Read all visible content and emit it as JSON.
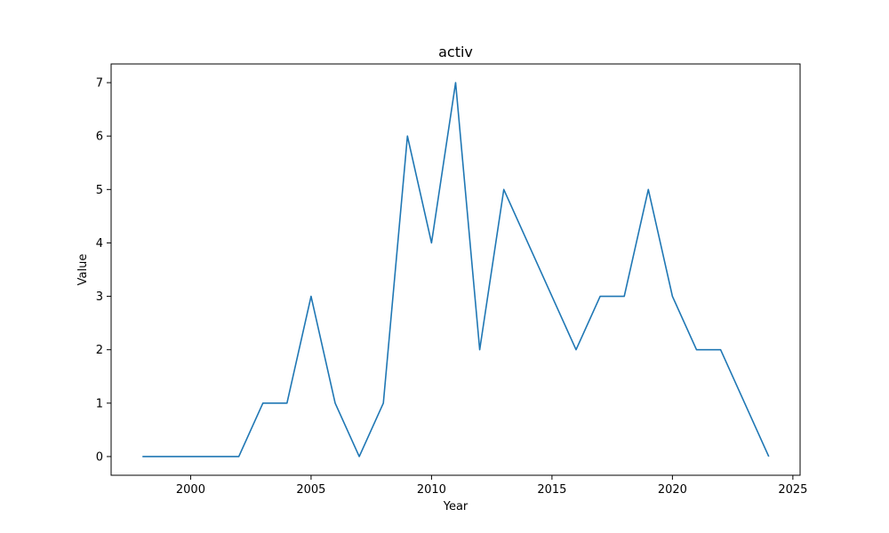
{
  "chart_data": {
    "type": "line",
    "title": "activ",
    "xlabel": "Year",
    "ylabel": "Value",
    "xlim": [
      1996.7,
      2025.3
    ],
    "ylim": [
      -0.35,
      7.35
    ],
    "xticks": [
      2000,
      2005,
      2010,
      2015,
      2020,
      2025
    ],
    "yticks": [
      0,
      1,
      2,
      3,
      4,
      5,
      6,
      7
    ],
    "grid": false,
    "series": [
      {
        "color": "#1f77b4",
        "x": [
          1998,
          1999,
          2000,
          2001,
          2002,
          2003,
          2004,
          2005,
          2006,
          2007,
          2008,
          2009,
          2010,
          2011,
          2012,
          2013,
          2014,
          2015,
          2016,
          2017,
          2018,
          2019,
          2020,
          2021,
          2022,
          2023,
          2024
        ],
        "y": [
          0,
          0,
          0,
          0,
          0,
          1,
          1,
          3,
          1,
          0,
          1,
          6,
          4,
          7,
          2,
          5,
          4,
          3,
          2,
          3,
          3,
          5,
          3,
          2,
          2,
          1,
          0
        ]
      }
    ]
  }
}
